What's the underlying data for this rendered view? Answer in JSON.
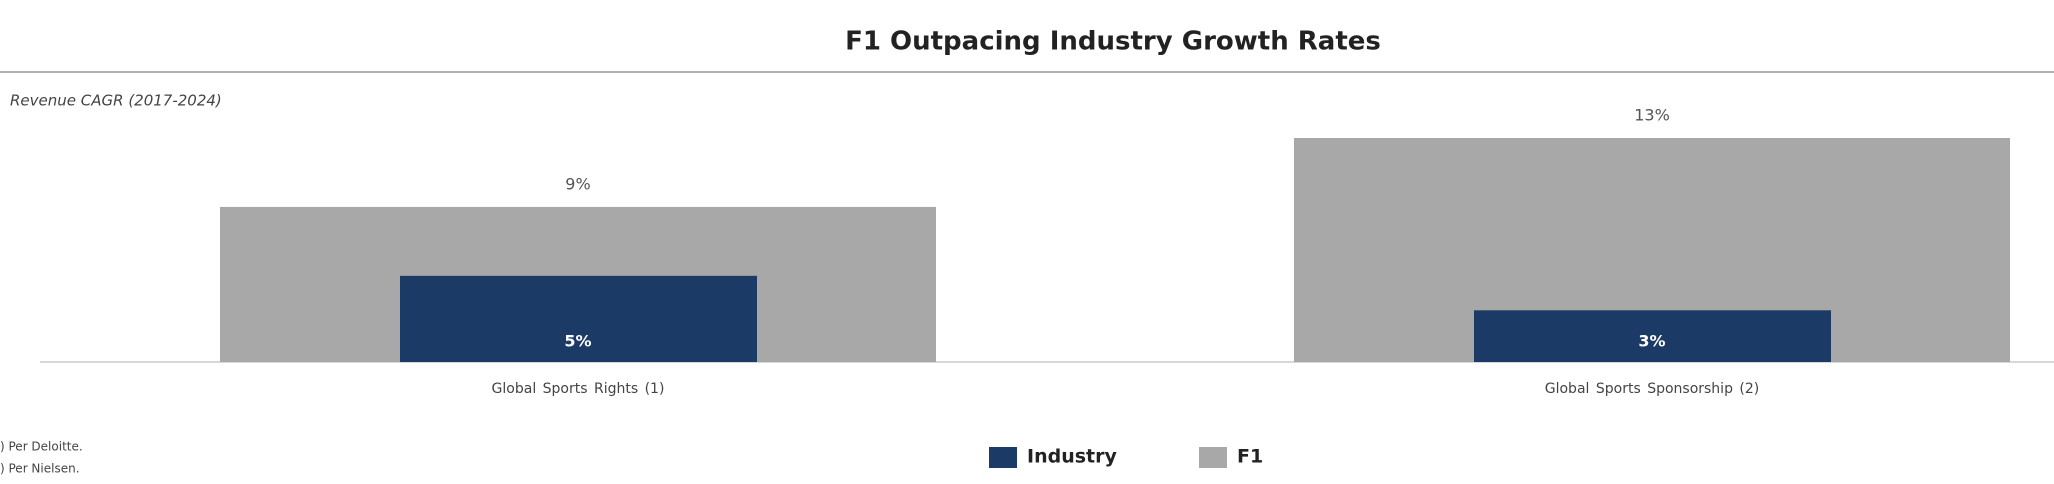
{
  "chart_data": {
    "type": "bar",
    "title": "F1 Outpacing Industry Growth Rates",
    "subtitle": "Revenue CAGR (2017-2024)",
    "categories": [
      "Global Sports Rights (1)",
      "Global Sports Sponsorship (2)"
    ],
    "series": [
      {
        "name": "Industry",
        "color": "#1b3a66",
        "values": [
          5,
          3
        ],
        "value_labels": [
          "5%",
          "3%"
        ]
      },
      {
        "name": "F1",
        "color": "#a8a8a8",
        "values": [
          9,
          13
        ],
        "value_labels": [
          "9%",
          "13%"
        ]
      }
    ],
    "ylim": [
      0,
      13
    ],
    "footnotes": [
      ") Per Deloitte.",
      ") Per Nielsen."
    ]
  }
}
